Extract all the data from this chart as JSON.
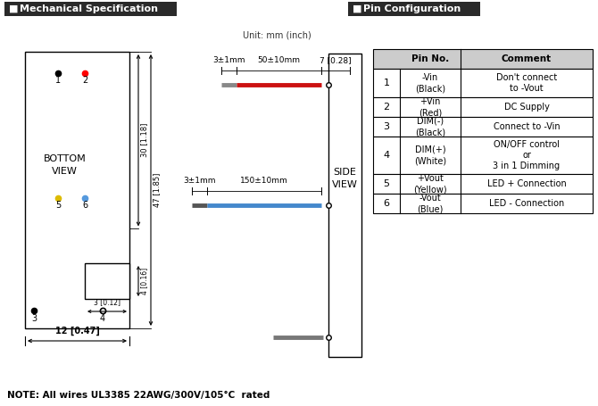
{
  "title_left": "Mechanical Specification",
  "title_right": "Pin Configuration",
  "unit_text": "Unit: mm (inch)",
  "note_text": "NOTE: All wires UL3385 22AWG/300V/105°C  rated",
  "bottom_view_label": "BOTTOM\nVIEW",
  "side_view_label": "SIDE\nVIEW",
  "pin_table": {
    "rows": [
      [
        "1",
        "-Vin\n(Black)",
        "Don't connect\nto -Vout"
      ],
      [
        "2",
        "+Vin\n(Red)",
        "DC Supply"
      ],
      [
        "3",
        "DIM(-)\n(Black)",
        "Connect to -Vin"
      ],
      [
        "4",
        "DIM(+)\n(White)",
        "ON/OFF control\nor\n3 in 1 Dimming"
      ],
      [
        "5",
        "+Vout\n(Yellow)",
        "LED + Connection"
      ],
      [
        "6",
        "-Vout\n(Blue)",
        "LED - Connection"
      ]
    ]
  },
  "bg_color": "#ffffff"
}
